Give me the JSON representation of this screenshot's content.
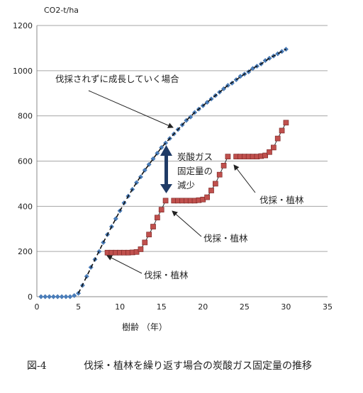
{
  "caption": {
    "figure_number": "図-4",
    "title": "伐採・植林を繰り返す場合の炭酸ガス固定量の推移"
  },
  "chart_data": {
    "type": "line",
    "title": "",
    "ylabel": "CO2-t/ha",
    "xlabel": "樹齢 （年）",
    "xlim": [
      0,
      35
    ],
    "ylim": [
      0,
      1200
    ],
    "xticks": [
      0,
      5,
      10,
      15,
      20,
      25,
      30,
      35
    ],
    "yticks": [
      0,
      200,
      400,
      600,
      800,
      1000,
      1200
    ],
    "grid": true,
    "series": [
      {
        "style": "blue-diamond-markers",
        "color": "#4a7ebb",
        "x": [
          0.5,
          1,
          1.5,
          2,
          2.5,
          3,
          3.5,
          4,
          4.5,
          5,
          5.5,
          6,
          6.5,
          7,
          7.5,
          8,
          8.5,
          9,
          9.5,
          10,
          10.5,
          11,
          11.5,
          12,
          12.5,
          13,
          13.5,
          14,
          14.5,
          15,
          15.5,
          16,
          16.5,
          17,
          17.5,
          18,
          18.5,
          19,
          19.5,
          20,
          20.5,
          21,
          21.5,
          22,
          22.5,
          23,
          23.5,
          24,
          24.5,
          25,
          25.5,
          26,
          26.5,
          27,
          27.5,
          28,
          28.5,
          29,
          29.5,
          30
        ],
        "y": [
          0,
          0,
          0,
          0,
          0,
          0,
          0,
          0,
          5,
          15,
          50,
          90,
          130,
          165,
          200,
          240,
          275,
          310,
          345,
          380,
          415,
          445,
          475,
          505,
          530,
          560,
          585,
          610,
          635,
          660,
          680,
          700,
          720,
          740,
          760,
          780,
          795,
          815,
          830,
          845,
          860,
          875,
          890,
          905,
          920,
          935,
          945,
          960,
          975,
          985,
          995,
          1010,
          1020,
          1030,
          1045,
          1055,
          1065,
          1075,
          1085,
          1095
        ]
      },
      {
        "style": "red-square-markers",
        "color": "#c0504d",
        "x": [
          8.5,
          9,
          9.5,
          10,
          10.5,
          11,
          11.5,
          12,
          12.5,
          13,
          13.5,
          14,
          14.5,
          15,
          15.5,
          16.5,
          17,
          17.5,
          18,
          18.5,
          19,
          19.5,
          20,
          20.5,
          21,
          21.5,
          22,
          22.5,
          23,
          24,
          24.5,
          25,
          25.5,
          26,
          26.5,
          27,
          27.5,
          28,
          28.5,
          29,
          29.5,
          30
        ],
        "y": [
          195,
          195,
          195,
          195,
          195,
          195,
          196,
          198,
          210,
          240,
          275,
          310,
          350,
          385,
          425,
          425,
          425,
          425,
          425,
          425,
          425,
          427,
          430,
          440,
          470,
          500,
          540,
          580,
          620,
          620,
          620,
          620,
          620,
          620,
          620,
          622,
          625,
          640,
          660,
          700,
          735,
          770
        ]
      },
      {
        "style": "black-dashed-trend",
        "color": "#111111",
        "x": [
          5,
          6,
          7,
          8,
          9,
          10,
          11,
          12,
          13,
          14,
          15,
          16,
          17,
          18,
          19,
          20,
          21,
          22,
          23,
          24,
          25,
          26,
          27,
          28,
          29,
          30
        ],
        "y": [
          15,
          90,
          165,
          240,
          310,
          380,
          445,
          505,
          560,
          610,
          660,
          700,
          740,
          780,
          815,
          845,
          875,
          905,
          935,
          960,
          985,
          1010,
          1030,
          1055,
          1075,
          1095
        ]
      }
    ],
    "annotations": [
      {
        "lines": [
          "伐採されずに成長していく場合"
        ]
      },
      {
        "lines": [
          "炭酸ガス",
          "固定量の",
          "減少"
        ]
      },
      {
        "lines": [
          "伐採・植林"
        ]
      },
      {
        "lines": [
          "伐採・植林"
        ]
      },
      {
        "lines": [
          "伐採・植林"
        ]
      }
    ]
  }
}
